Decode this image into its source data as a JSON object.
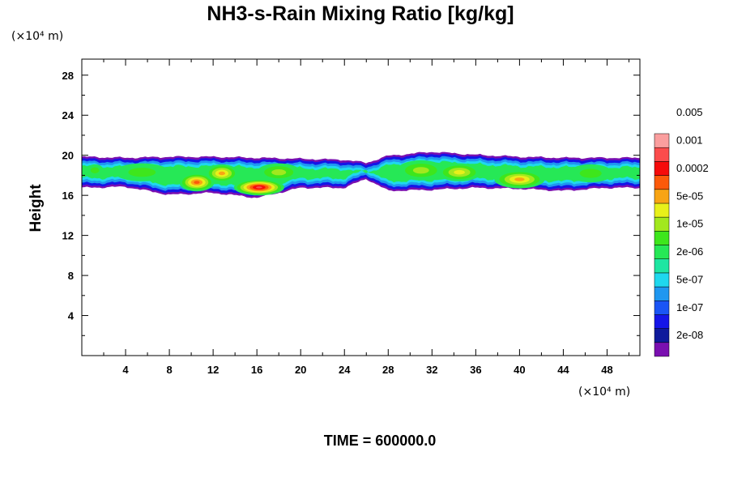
{
  "chart_data": {
    "type": "heatmap",
    "title": "NH3-s-Rain Mixing Ratio [kg/kg]",
    "ylabel": "Height",
    "x_unit_label": "(×10⁴ m)",
    "y_unit_label": "(×10⁴ m)",
    "xlim": [
      0,
      51
    ],
    "ylim": [
      0,
      29.6
    ],
    "x_ticks": [
      4,
      8,
      12,
      16,
      20,
      24,
      28,
      32,
      36,
      40,
      44,
      48
    ],
    "y_ticks": [
      4,
      8,
      12,
      16,
      20,
      24,
      28
    ],
    "footer": "TIME = 600000.0",
    "grid": false,
    "colorbar": {
      "placement": "right",
      "levels": [
        {
          "color": "#7a0fb0"
        },
        {
          "color": "#0f1a9c"
        },
        {
          "color": "#1515e8"
        },
        {
          "color": "#1a55f5"
        },
        {
          "color": "#1f97f0"
        },
        {
          "color": "#1fd8ee"
        },
        {
          "color": "#1ee6a2"
        },
        {
          "color": "#26e856"
        },
        {
          "color": "#3ee61c"
        },
        {
          "color": "#a2e81e"
        },
        {
          "color": "#e8f01a"
        },
        {
          "color": "#f8a414"
        },
        {
          "color": "#fc5a0a"
        },
        {
          "color": "#f60b0b"
        },
        {
          "color": "#fb4c4c"
        },
        {
          "color": "#fa9e9e"
        }
      ],
      "labels": [
        "2e-08",
        "1e-07",
        "5e-07",
        "2e-06",
        "1e-05",
        "5e-05",
        "0.0002",
        "0.001",
        "0.005"
      ]
    },
    "field": {
      "description_levels": "band of values between heights ~16 and ~20 (x10^4 m)",
      "base_band": [
        {
          "x": 0,
          "y0": 16.9,
          "y1": 19.7
        },
        {
          "x": 4,
          "y0": 17.0,
          "y1": 19.6
        },
        {
          "x": 8,
          "y0": 16.2,
          "y1": 19.7
        },
        {
          "x": 12,
          "y0": 16.4,
          "y1": 19.7
        },
        {
          "x": 16,
          "y0": 15.9,
          "y1": 19.6
        },
        {
          "x": 20,
          "y0": 16.9,
          "y1": 19.5
        },
        {
          "x": 24,
          "y0": 16.9,
          "y1": 19.4
        },
        {
          "x": 26,
          "y0": 17.8,
          "y1": 19.1
        },
        {
          "x": 28,
          "y0": 16.6,
          "y1": 19.8
        },
        {
          "x": 32,
          "y0": 16.7,
          "y1": 20.2
        },
        {
          "x": 36,
          "y0": 16.9,
          "y1": 19.9
        },
        {
          "x": 40,
          "y0": 16.8,
          "y1": 19.7
        },
        {
          "x": 44,
          "y0": 16.6,
          "y1": 19.6
        },
        {
          "x": 48,
          "y0": 16.9,
          "y1": 19.6
        },
        {
          "x": 51,
          "y0": 16.9,
          "y1": 19.6
        }
      ],
      "cores": [
        {
          "x": 1.2,
          "y": 18.5,
          "rx": 0.8,
          "ry": 0.6,
          "level": 6
        },
        {
          "x": 5.5,
          "y": 18.3,
          "rx": 2.5,
          "ry": 0.9,
          "level": 8
        },
        {
          "x": 10.5,
          "y": 17.3,
          "rx": 1.6,
          "ry": 0.9,
          "level": 12
        },
        {
          "x": 12.8,
          "y": 18.2,
          "rx": 1.5,
          "ry": 0.9,
          "level": 11
        },
        {
          "x": 16.2,
          "y": 16.8,
          "rx": 2.3,
          "ry": 0.8,
          "level": 14
        },
        {
          "x": 18.0,
          "y": 18.3,
          "rx": 2.0,
          "ry": 0.9,
          "level": 9
        },
        {
          "x": 31.0,
          "y": 18.5,
          "rx": 2.2,
          "ry": 1.0,
          "level": 9
        },
        {
          "x": 34.5,
          "y": 18.3,
          "rx": 2.0,
          "ry": 0.9,
          "level": 10
        },
        {
          "x": 40.0,
          "y": 17.6,
          "rx": 2.3,
          "ry": 0.9,
          "level": 11
        },
        {
          "x": 46.5,
          "y": 18.2,
          "rx": 2.0,
          "ry": 0.9,
          "level": 7
        }
      ]
    }
  }
}
